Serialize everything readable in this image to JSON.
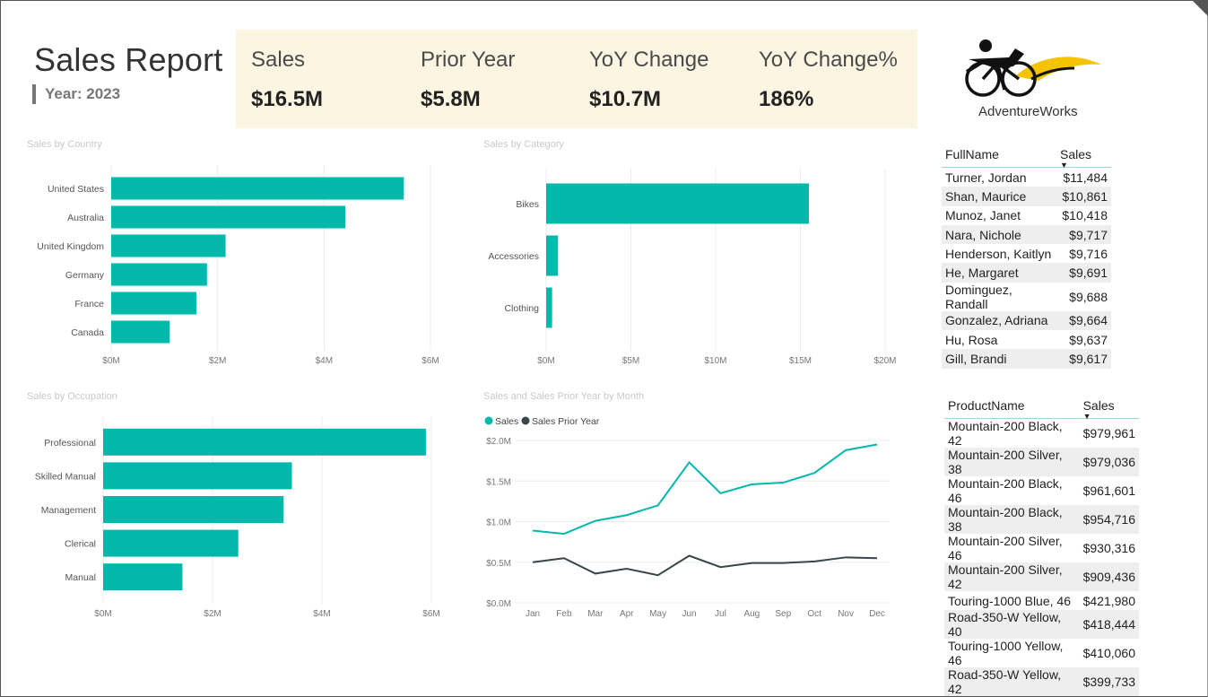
{
  "header": {
    "title": "Sales Report",
    "year_label": "Year: 2023"
  },
  "kpis": [
    {
      "label": "Sales",
      "value": "$16.5M"
    },
    {
      "label": "Prior Year",
      "value": "$5.8M"
    },
    {
      "label": "YoY Change",
      "value": "$10.7M"
    },
    {
      "label": "YoY Change%",
      "value": "186%"
    }
  ],
  "logo": {
    "name": "AdventureWorks",
    "accent": "#f5c400"
  },
  "colors": {
    "teal": "#01b8aa",
    "dark": "#374649"
  },
  "chart_data": [
    {
      "type": "bar",
      "title": "Sales by Country",
      "categories": [
        "United States",
        "Australia",
        "United Kingdom",
        "Germany",
        "France",
        "Canada"
      ],
      "values": [
        5.5,
        4.4,
        2.15,
        1.8,
        1.6,
        1.1
      ],
      "xlim": [
        0,
        6
      ],
      "ticks": [
        "$0M",
        "$2M",
        "$4M",
        "$6M"
      ]
    },
    {
      "type": "bar",
      "title": "Sales by Category",
      "categories": [
        "Bikes",
        "Accessories",
        "Clothing"
      ],
      "values": [
        15.5,
        0.7,
        0.35
      ],
      "xlim": [
        0,
        20
      ],
      "ticks": [
        "$0M",
        "$5M",
        "$10M",
        "$15M",
        "$20M"
      ]
    },
    {
      "type": "bar",
      "title": "Sales by Occupation",
      "categories": [
        "Professional",
        "Skilled Manual",
        "Management",
        "Clerical",
        "Manual"
      ],
      "values": [
        5.9,
        3.45,
        3.3,
        2.47,
        1.45
      ],
      "xlim": [
        0,
        6
      ],
      "ticks": [
        "$0M",
        "$2M",
        "$4M",
        "$6M"
      ]
    },
    {
      "type": "line",
      "title": "Sales and Sales Prior Year by Month",
      "categories": [
        "Jan",
        "Feb",
        "Mar",
        "Apr",
        "May",
        "Jun",
        "Jul",
        "Aug",
        "Sep",
        "Oct",
        "Nov",
        "Dec"
      ],
      "series": [
        {
          "name": "Sales",
          "color": "#01b8aa",
          "values": [
            0.89,
            0.85,
            1.01,
            1.08,
            1.2,
            1.73,
            1.35,
            1.46,
            1.48,
            1.6,
            1.88,
            1.95
          ]
        },
        {
          "name": "Sales Prior Year",
          "color": "#374649",
          "values": [
            0.5,
            0.55,
            0.36,
            0.42,
            0.34,
            0.58,
            0.44,
            0.49,
            0.49,
            0.51,
            0.56,
            0.55
          ]
        }
      ],
      "ylim": [
        0,
        2
      ],
      "yticks": [
        "$0.0M",
        "$0.5M",
        "$1.0M",
        "$1.5M",
        "$2.0M"
      ],
      "legend": "top-left"
    }
  ],
  "customers_table": {
    "columns": [
      "FullName",
      "Sales"
    ],
    "rows": [
      [
        "Turner, Jordan",
        "$11,484"
      ],
      [
        "Shan, Maurice",
        "$10,861"
      ],
      [
        "Munoz, Janet",
        "$10,418"
      ],
      [
        "Nara, Nichole",
        "$9,717"
      ],
      [
        "Henderson, Kaitlyn",
        "$9,716"
      ],
      [
        "He, Margaret",
        "$9,691"
      ],
      [
        "Dominguez, Randall",
        "$9,688"
      ],
      [
        "Gonzalez, Adriana",
        "$9,664"
      ],
      [
        "Hu, Rosa",
        "$9,637"
      ],
      [
        "Gill, Brandi",
        "$9,617"
      ]
    ]
  },
  "products_table": {
    "columns": [
      "ProductName",
      "Sales"
    ],
    "rows": [
      [
        "Mountain-200 Black, 42",
        "$979,961"
      ],
      [
        "Mountain-200 Silver, 38",
        "$979,036"
      ],
      [
        "Mountain-200 Black, 46",
        "$961,601"
      ],
      [
        "Mountain-200 Black, 38",
        "$954,716"
      ],
      [
        "Mountain-200 Silver, 46",
        "$930,316"
      ],
      [
        "Mountain-200 Silver, 42",
        "$909,436"
      ],
      [
        "Touring-1000 Blue, 46",
        "$421,980"
      ],
      [
        "Road-350-W Yellow, 40",
        "$418,444"
      ],
      [
        "Touring-1000 Yellow, 46",
        "$410,060"
      ],
      [
        "Road-350-W Yellow, 42",
        "$399,733"
      ]
    ]
  }
}
